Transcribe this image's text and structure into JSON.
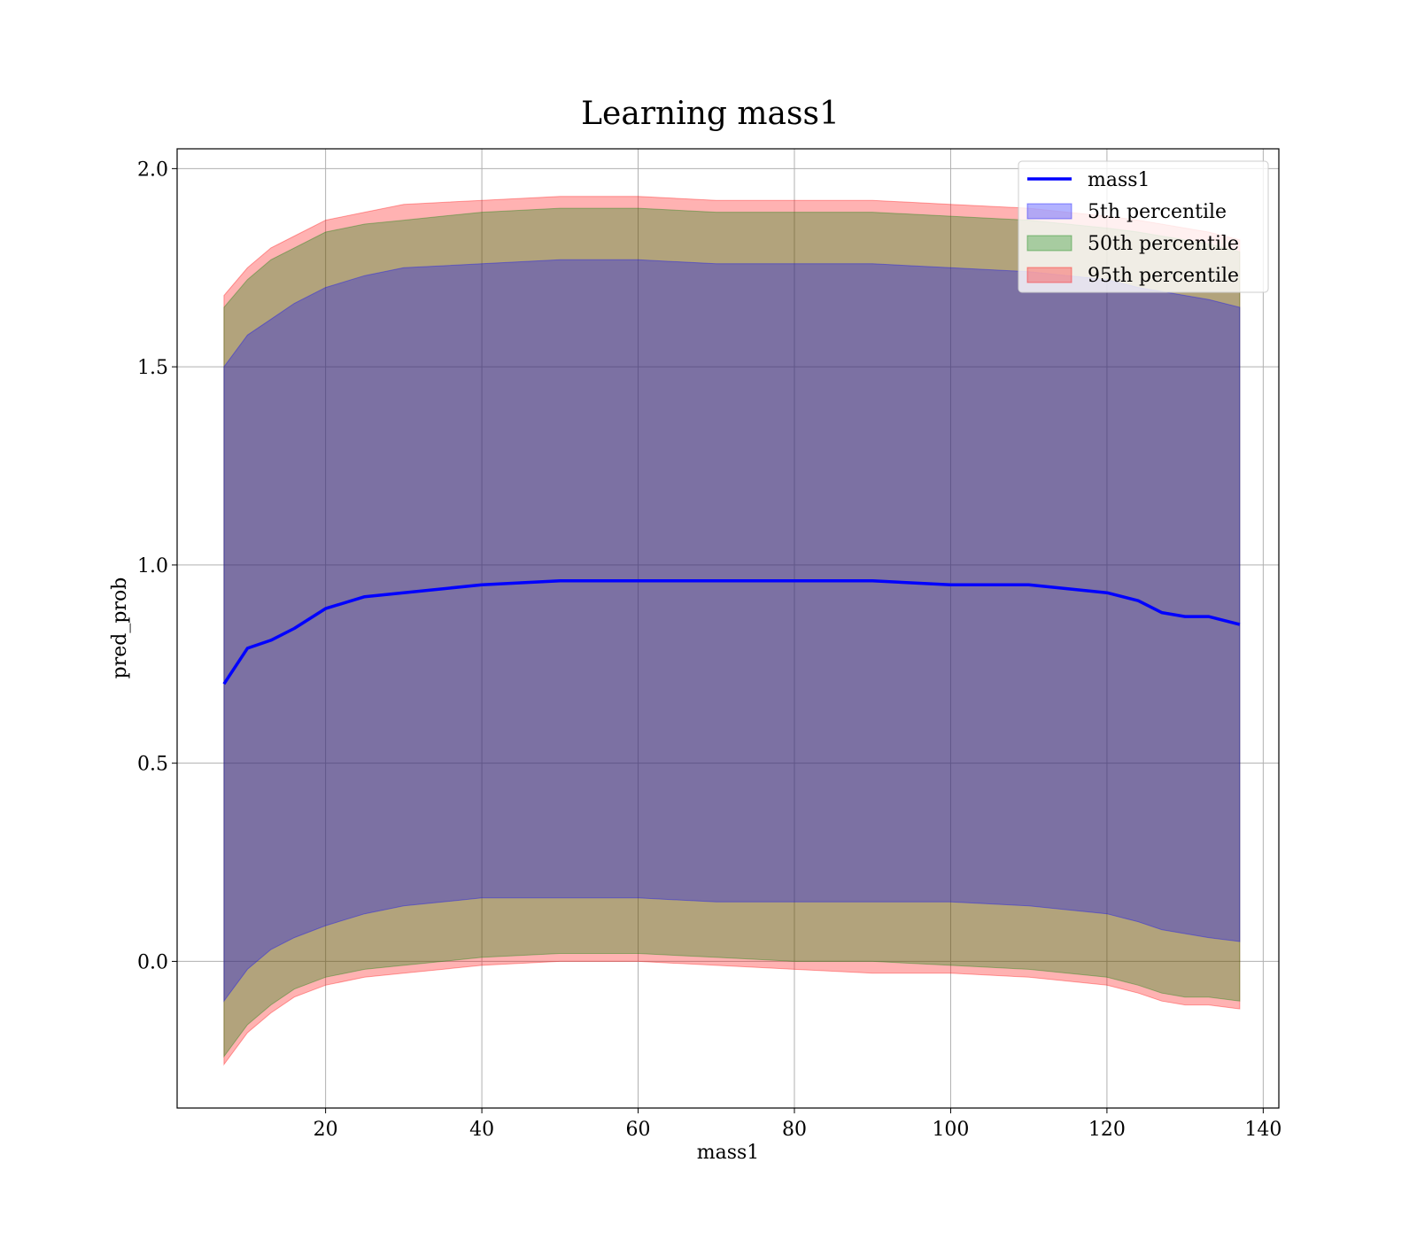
{
  "chart_data": {
    "type": "line",
    "title": "Learning mass1",
    "xlabel": "mass1",
    "ylabel": "pred_prob",
    "xlim": [
      1,
      142
    ],
    "ylim": [
      -0.37,
      2.05
    ],
    "xticks": [
      20,
      40,
      60,
      80,
      100,
      120,
      140
    ],
    "yticks": [
      0.0,
      0.5,
      1.0,
      1.5,
      2.0
    ],
    "ytick_labels": [
      "0.0",
      "0.5",
      "1.0",
      "1.5",
      "2.0"
    ],
    "grid": true,
    "legend_position": "top-right",
    "x": [
      7,
      10,
      13,
      16,
      20,
      25,
      30,
      40,
      50,
      60,
      70,
      80,
      90,
      100,
      110,
      120,
      124,
      127,
      130,
      133,
      137
    ],
    "series": [
      {
        "name": "mass1",
        "kind": "line",
        "color": "#0000ff",
        "values": [
          0.7,
          0.79,
          0.81,
          0.84,
          0.89,
          0.92,
          0.93,
          0.95,
          0.96,
          0.96,
          0.96,
          0.96,
          0.96,
          0.95,
          0.95,
          0.93,
          0.91,
          0.88,
          0.87,
          0.87,
          0.85
        ]
      },
      {
        "name": "5th percentile",
        "kind": "band",
        "color": "#0000ff",
        "lower": [
          -0.1,
          -0.02,
          0.03,
          0.06,
          0.09,
          0.12,
          0.14,
          0.16,
          0.16,
          0.16,
          0.15,
          0.15,
          0.15,
          0.15,
          0.14,
          0.12,
          0.1,
          0.08,
          0.07,
          0.06,
          0.05
        ],
        "upper": [
          1.5,
          1.58,
          1.62,
          1.66,
          1.7,
          1.73,
          1.75,
          1.76,
          1.77,
          1.77,
          1.76,
          1.76,
          1.76,
          1.75,
          1.74,
          1.72,
          1.7,
          1.69,
          1.68,
          1.67,
          1.65
        ]
      },
      {
        "name": "50th percentile",
        "kind": "band",
        "color": "#008000",
        "lower": [
          -0.24,
          -0.16,
          -0.11,
          -0.07,
          -0.04,
          -0.02,
          -0.01,
          0.01,
          0.02,
          0.02,
          0.01,
          0.0,
          0.0,
          -0.01,
          -0.02,
          -0.04,
          -0.06,
          -0.08,
          -0.09,
          -0.09,
          -0.1
        ],
        "upper": [
          1.65,
          1.72,
          1.77,
          1.8,
          1.84,
          1.86,
          1.87,
          1.89,
          1.9,
          1.9,
          1.89,
          1.89,
          1.89,
          1.88,
          1.87,
          1.85,
          1.84,
          1.83,
          1.82,
          1.81,
          1.79
        ]
      },
      {
        "name": "95th percentile",
        "kind": "band",
        "color": "#ff0000",
        "lower": [
          -0.26,
          -0.18,
          -0.13,
          -0.09,
          -0.06,
          -0.04,
          -0.03,
          -0.01,
          0.0,
          0.0,
          -0.01,
          -0.02,
          -0.03,
          -0.03,
          -0.04,
          -0.06,
          -0.08,
          -0.1,
          -0.11,
          -0.11,
          -0.12
        ],
        "upper": [
          1.68,
          1.75,
          1.8,
          1.83,
          1.87,
          1.89,
          1.91,
          1.92,
          1.93,
          1.93,
          1.92,
          1.92,
          1.92,
          1.91,
          1.9,
          1.88,
          1.87,
          1.86,
          1.85,
          1.84,
          1.82
        ]
      }
    ]
  }
}
